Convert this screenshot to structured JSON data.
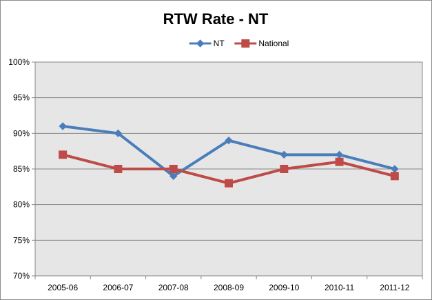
{
  "chart_data": {
    "type": "line",
    "title": "RTW Rate - NT",
    "xlabel": "",
    "ylabel": "",
    "categories": [
      "2005-06",
      "2006-07",
      "2007-08",
      "2008-09",
      "2009-10",
      "2010-11",
      "2011-12"
    ],
    "series": [
      {
        "name": "NT",
        "values": [
          91,
          90,
          84,
          89,
          87,
          87,
          85
        ],
        "color": "#4a7ebb",
        "marker": "diamond"
      },
      {
        "name": "National",
        "values": [
          87,
          85,
          85,
          83,
          85,
          86,
          84
        ],
        "color": "#be4b48",
        "marker": "square"
      }
    ],
    "ylim": [
      70,
      100
    ],
    "yticks": [
      70,
      75,
      80,
      85,
      90,
      95,
      100
    ],
    "ytick_labels": [
      "70%",
      "75%",
      "80%",
      "85%",
      "90%",
      "95%",
      "100%"
    ],
    "grid": true,
    "legend_position": "top-center",
    "plot_background": "#e6e6e6",
    "gridline_color": "#868686"
  }
}
